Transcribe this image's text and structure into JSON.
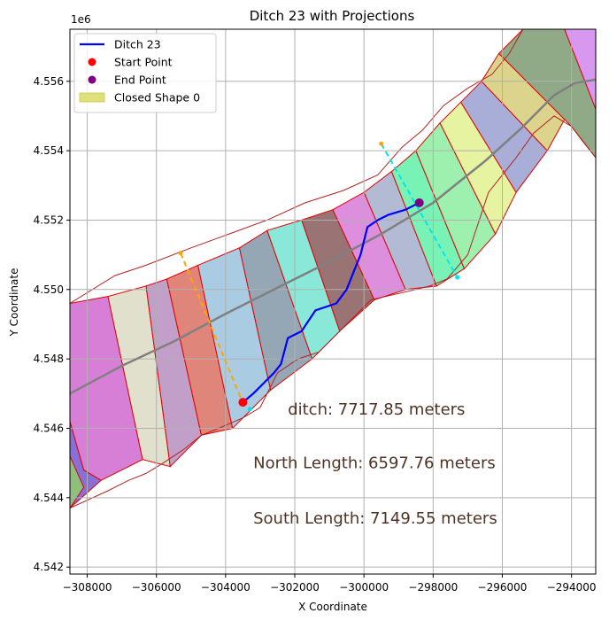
{
  "chart_data": {
    "type": "line",
    "title": "Ditch 23 with Projections",
    "xlabel": "X Coordinate",
    "ylabel": "Y Coordinate",
    "y_offset_label": "1e6",
    "xlim": [
      -308500,
      -293300
    ],
    "ylim": [
      4541800,
      4557500
    ],
    "grid": true,
    "x_ticks": [
      -308000,
      -306000,
      -304000,
      -302000,
      -300000,
      -298000,
      -296000,
      -294000
    ],
    "x_tick_labels": [
      "−308000",
      "−306000",
      "−304000",
      "−302000",
      "−300000",
      "−298000",
      "−296000",
      "−294000"
    ],
    "y_ticks": [
      4542000,
      4544000,
      4546000,
      4548000,
      4550000,
      4552000,
      4554000,
      4556000
    ],
    "y_tick_labels": [
      "4.542",
      "4.544",
      "4.546",
      "4.548",
      "4.550",
      "4.552",
      "4.554",
      "4.556"
    ],
    "legend": {
      "location": "top-left",
      "entries": [
        {
          "label": "Ditch 23",
          "kind": "line",
          "color": "#0000ff"
        },
        {
          "label": "Start Point",
          "kind": "point",
          "color": "#ff0000"
        },
        {
          "label": "End Point",
          "kind": "point",
          "color": "#800080"
        },
        {
          "label": "Closed Shape 0",
          "kind": "patch",
          "color": "#e0e07a"
        }
      ]
    },
    "annotations": [
      {
        "text": "ditch: 7717.85 meters",
        "x": -302200,
        "y": 4546400
      },
      {
        "text": "North Length: 6597.76 meters",
        "x": -303200,
        "y": 4544850
      },
      {
        "text": "South Length: 7149.55 meters",
        "x": -303200,
        "y": 4543250
      }
    ],
    "ditch": {
      "name": "Ditch 23",
      "color": "#0000ff",
      "x": [
        -303500,
        -303200,
        -302900,
        -302600,
        -302400,
        -302200,
        -301800,
        -301600,
        -301400,
        -300800,
        -300500,
        -300300,
        -300100,
        -299900,
        -299600,
        -299300,
        -298800,
        -298400
      ],
      "y": [
        4546750,
        4547000,
        4547300,
        4547600,
        4547850,
        4548600,
        4548800,
        4549100,
        4549400,
        4549600,
        4550000,
        4550500,
        4551000,
        4551800,
        4552000,
        4552150,
        4552300,
        4552500
      ]
    },
    "start_point": {
      "x": -303500,
      "y": 4546750,
      "color": "#ff0000"
    },
    "end_point": {
      "x": -298400,
      "y": 4552500,
      "color": "#800080"
    },
    "north_projection": {
      "x": [
        -305300,
        -303550
      ],
      "y": [
        4551050,
        4546850
      ],
      "color": "#ffa500"
    },
    "south_projection": {
      "x": [
        -299500,
        -297300
      ],
      "y": [
        4554200,
        4550350
      ],
      "color": "#00e5ee"
    },
    "south_endpoint_markers": [
      {
        "x": -303300,
        "y": 4546550,
        "color": "#00e5ee"
      },
      {
        "x": -297300,
        "y": 4550350,
        "color": "#00e5ee"
      }
    ],
    "centerline": {
      "color": "#808080",
      "x": [
        -308500,
        -307000,
        -305500,
        -304000,
        -302500,
        -301000,
        -299500,
        -298000,
        -296500,
        -295500,
        -294500,
        -293900,
        -293300
      ],
      "y": [
        4547000,
        4547800,
        4548500,
        4549300,
        4550050,
        4550800,
        4551600,
        4552500,
        4553700,
        4554600,
        4555600,
        4555950,
        4556050
      ]
    },
    "corridor": {
      "north_edge": {
        "x": [
          -308500,
          -307200,
          -306300,
          -305000,
          -303900,
          -302800,
          -301700,
          -300600,
          -299600,
          -298900,
          -298300,
          -297700,
          -297000,
          -296300,
          -295800,
          -295400,
          -294700,
          -293300
        ],
        "y": [
          4549600,
          4550400,
          4550700,
          4551200,
          4551600,
          4552000,
          4552500,
          4552850,
          4553300,
          4554100,
          4554600,
          4555300,
          4555800,
          4556200,
          4556800,
          4557500,
          4557500,
          4557500
        ]
      },
      "south_edge": {
        "x": [
          -293300,
          -293700,
          -294000,
          -294500,
          -295100,
          -295600,
          -296400,
          -297000,
          -297600,
          -298100,
          -298500,
          -299800,
          -300700,
          -301300,
          -301900,
          -302500,
          -303000,
          -303500,
          -304200,
          -304700,
          -305200,
          -305800,
          -306300,
          -306800,
          -307400,
          -308500
        ],
        "y": [
          4553800,
          4554300,
          4554700,
          4555000,
          4554500,
          4553800,
          4552800,
          4551000,
          4550300,
          4550100,
          4550000,
          4549700,
          4548800,
          4548200,
          4548000,
          4547600,
          4546600,
          4546300,
          4546000,
          4545800,
          4545400,
          4545000,
          4544700,
          4544500,
          4544200,
          4543700
        ]
      }
    },
    "segments": [
      {
        "color": "#8a6fd8",
        "x": [
          -308500,
          -308500,
          -308100,
          -307600,
          -308500
        ],
        "y": [
          4548200,
          4546200,
          4544800,
          4544500,
          4543700
        ]
      },
      {
        "color": "#d77fd7",
        "x": [
          -308500,
          -307400,
          -306400,
          -307600,
          -308100,
          -308500
        ],
        "y": [
          4549600,
          4549800,
          4545100,
          4544500,
          4544800,
          4546200
        ]
      },
      {
        "color": "#e1e0cc",
        "x": [
          -307400,
          -306300,
          -305600,
          -306400
        ],
        "y": [
          4549800,
          4550100,
          4544900,
          4545100
        ]
      },
      {
        "color": "#c19fc9",
        "x": [
          -306300,
          -305700,
          -304700,
          -305600
        ],
        "y": [
          4550100,
          4550300,
          4545800,
          4544900
        ]
      },
      {
        "color": "#e0857a",
        "x": [
          -305700,
          -304800,
          -303800,
          -304700
        ],
        "y": [
          4550300,
          4550700,
          4546000,
          4545800
        ]
      },
      {
        "color": "#a9cce3",
        "x": [
          -304800,
          -303600,
          -302700,
          -303800
        ],
        "y": [
          4550700,
          4551200,
          4547100,
          4546000
        ]
      },
      {
        "color": "#95a6b5",
        "x": [
          -303600,
          -302800,
          -301500,
          -302700
        ],
        "y": [
          4551200,
          4551700,
          4548000,
          4547100
        ]
      },
      {
        "color": "#8ae8d8",
        "x": [
          -302800,
          -301800,
          -300700,
          -301500
        ],
        "y": [
          4551700,
          4552000,
          4548800,
          4548000
        ]
      },
      {
        "color": "#9a7475",
        "x": [
          -301800,
          -300900,
          -299700,
          -300700
        ],
        "y": [
          4552000,
          4552300,
          4549700,
          4548800
        ]
      },
      {
        "color": "#dd8fdd",
        "x": [
          -300900,
          -300000,
          -298800,
          -299700
        ],
        "y": [
          4552300,
          4552800,
          4550000,
          4549700
        ]
      },
      {
        "color": "#b3bbd4",
        "x": [
          -300000,
          -299200,
          -297900,
          -298800
        ],
        "y": [
          4552800,
          4553400,
          4550100,
          4550000
        ]
      },
      {
        "color": "#78f3b5",
        "x": [
          -299200,
          -298500,
          -297100,
          -297900
        ],
        "y": [
          4553400,
          4554000,
          4550600,
          4550100
        ]
      },
      {
        "color": "#9ef0ae",
        "x": [
          -298500,
          -297800,
          -296200,
          -297100
        ],
        "y": [
          4554000,
          4554800,
          4551600,
          4550600
        ]
      },
      {
        "color": "#e6f3a0",
        "x": [
          -297800,
          -297200,
          -295600,
          -296200
        ],
        "y": [
          4554800,
          4555400,
          4552800,
          4551600
        ]
      },
      {
        "color": "#a8aed8",
        "x": [
          -297200,
          -296600,
          -294700,
          -295600
        ],
        "y": [
          4555400,
          4556000,
          4554000,
          4552800
        ]
      },
      {
        "color": "#dcd48c",
        "x": [
          -296600,
          -296100,
          -294200,
          -294700
        ],
        "y": [
          4556000,
          4556800,
          4554900,
          4554000
        ]
      },
      {
        "color": "#90aa87",
        "x": [
          -296100,
          -295400,
          -294200,
          -293300,
          -293300,
          -294000
        ],
        "y": [
          4556800,
          4557500,
          4557500,
          4555200,
          4553800,
          4554700
        ]
      },
      {
        "color": "#d898f0",
        "x": [
          -294200,
          -293300,
          -293300
        ],
        "y": [
          4557500,
          4557500,
          4555200
        ]
      },
      {
        "color": "#8fbf7d",
        "x": [
          -308500,
          -308500,
          -308100
        ],
        "y": [
          4545200,
          4543700,
          4544300
        ]
      }
    ]
  }
}
